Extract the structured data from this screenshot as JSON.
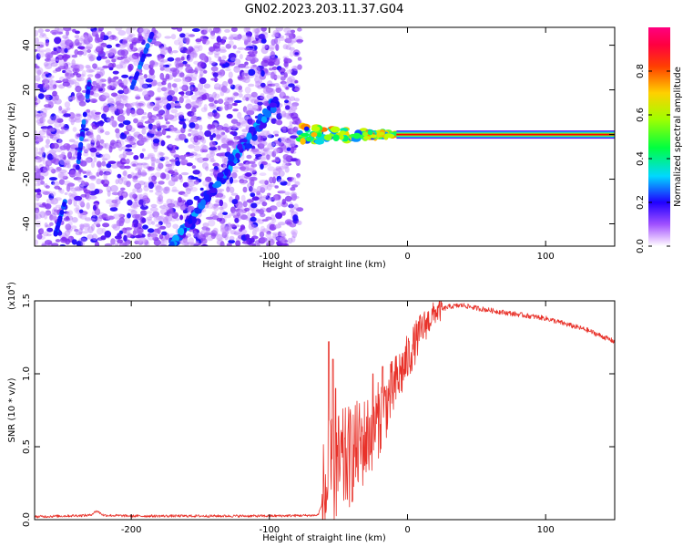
{
  "title": "GN02.2023.203.11.37.G04",
  "colors": {
    "snr_line": "#e8322a",
    "tone_line": "#ff0000",
    "background": "#ffffff"
  },
  "chart_data": [
    {
      "type": "heatmap",
      "xlabel": "Height of straight line (km)",
      "ylabel": "Frequency (Hz)",
      "xlim": [
        -270,
        150
      ],
      "ylim": [
        -50,
        48
      ],
      "xticks": [
        -200,
        -100,
        0,
        100
      ],
      "yticks": [
        -40,
        -20,
        0,
        20,
        40
      ],
      "colorbar": {
        "label": "Normalized spectral amplitude",
        "ticks": [
          0.0,
          0.2,
          0.4,
          0.6,
          0.8
        ],
        "ticklabels": [
          "0.0",
          "0.2",
          "0.4",
          "0.6",
          "0.8"
        ],
        "range": [
          0.0,
          1.0
        ],
        "colormap": "rainbow (white/violet at 0, red/magenta at 1)"
      },
      "features": {
        "noise_region_x": [
          -270,
          -78
        ],
        "diagonal_track": {
          "x": [
            -170,
            -95
          ],
          "y": [
            -50,
            15
          ]
        },
        "converging_signal": {
          "x": [
            -78,
            -8
          ],
          "y": [
            0,
            0
          ]
        },
        "steady_tone": {
          "x": [
            -8,
            150
          ],
          "y": 0,
          "amplitude": 1.0
        }
      }
    },
    {
      "type": "line",
      "xlabel": "Height of straight line (km)",
      "ylabel": "SNR (10 * v/v)",
      "multiplier": "(x10",
      "multiplier_exp": "4",
      "multiplier_close": ")",
      "xlim": [
        -270,
        150
      ],
      "ylim": [
        0.0,
        1.5
      ],
      "xticks": [
        -200,
        -100,
        0,
        100
      ],
      "yticks": [
        0.0,
        0.5,
        1.0,
        1.5
      ],
      "yticklabels": [
        "0.0",
        "0.5",
        "1.0",
        "1.5"
      ],
      "envelope": {
        "x": [
          -270,
          -230,
          -225,
          -220,
          -200,
          -150,
          -100,
          -65,
          -60,
          -55,
          -50,
          -40,
          -30,
          -20,
          -10,
          0,
          10,
          20,
          30,
          40,
          50,
          70,
          100,
          130,
          150
        ],
        "y": [
          0.02,
          0.03,
          0.06,
          0.03,
          0.025,
          0.025,
          0.025,
          0.03,
          0.15,
          0.3,
          0.35,
          0.45,
          0.55,
          0.7,
          0.9,
          1.1,
          1.3,
          1.42,
          1.46,
          1.47,
          1.45,
          1.42,
          1.38,
          1.3,
          1.22
        ]
      },
      "spikes": [
        {
          "x": -57,
          "y": 1.22
        },
        {
          "x": -54,
          "y": 1.1
        },
        {
          "x": -52,
          "y": 0.9
        },
        {
          "x": -25,
          "y": 1.0
        },
        {
          "x": -18,
          "y": 1.05
        }
      ]
    }
  ]
}
